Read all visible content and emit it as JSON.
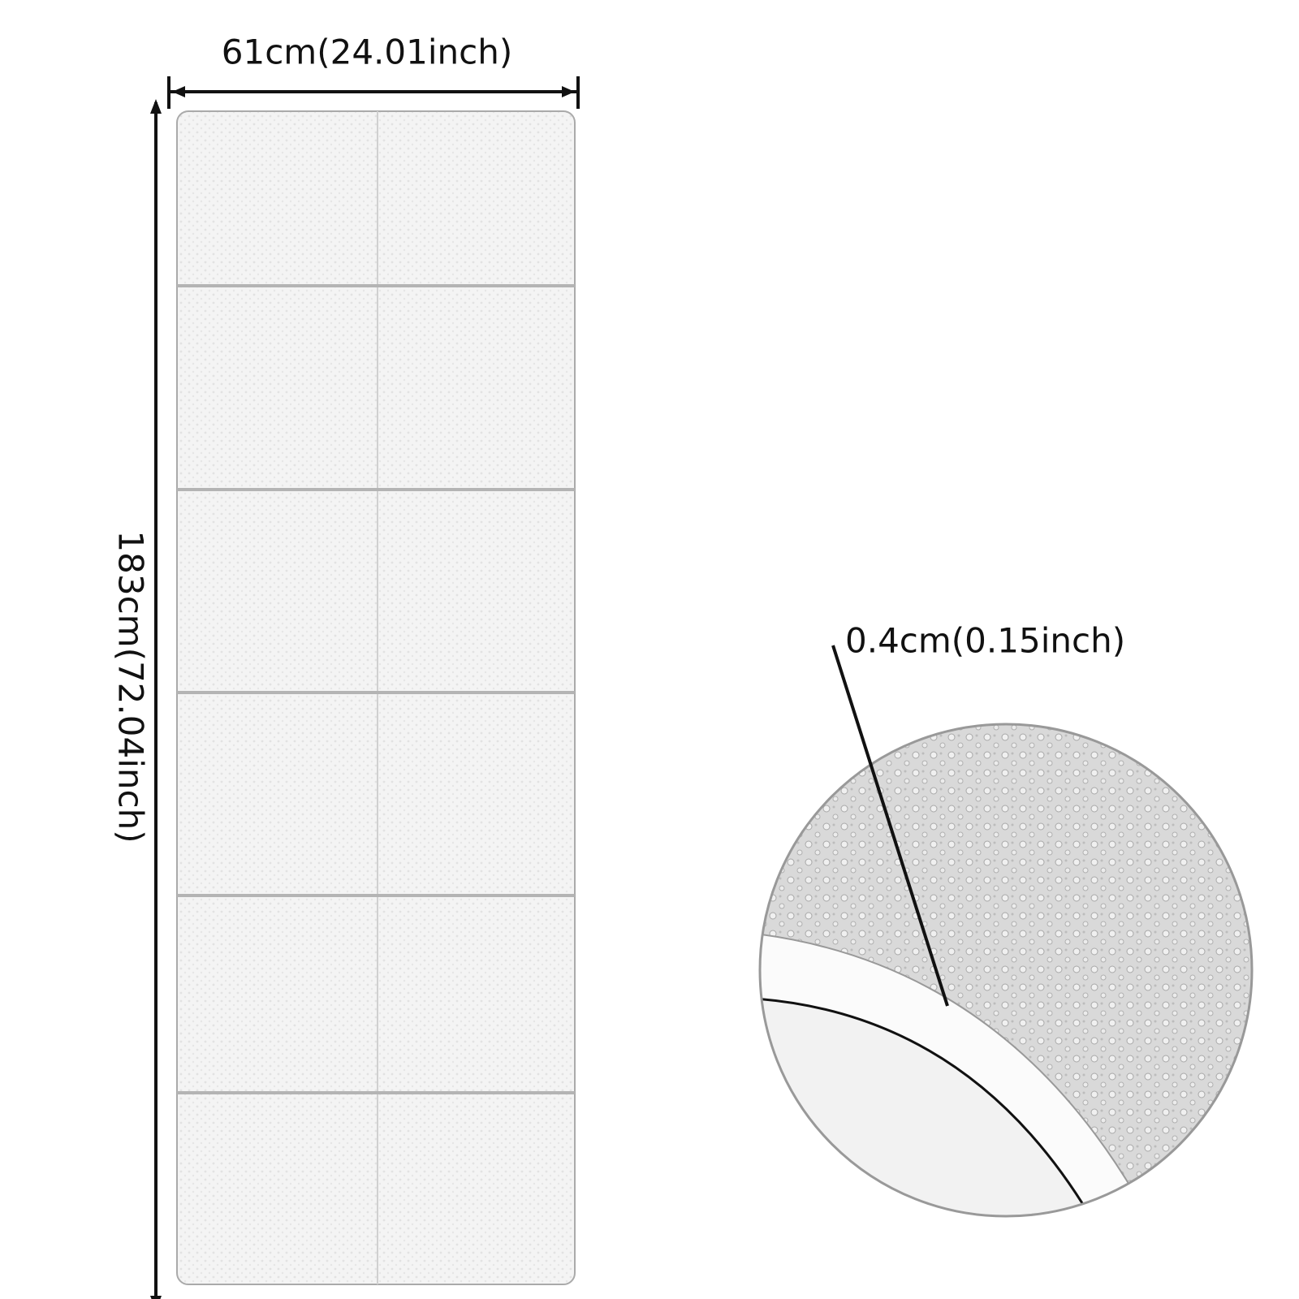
{
  "width_label": "61cm(24.01inch)",
  "length_label": "183cm(72.04inch)",
  "thickness_label": "0.4cm(0.15inch)"
}
